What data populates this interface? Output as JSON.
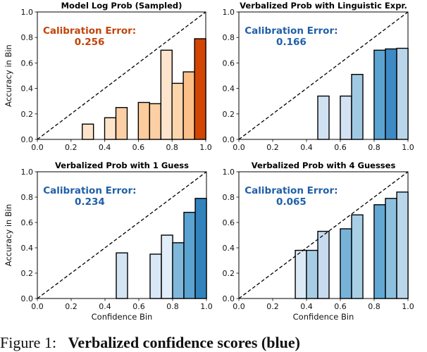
{
  "chart_data": [
    {
      "type": "bar",
      "title": "Model Log Prob (Sampled)",
      "annotation": {
        "label": "Calibration Error:",
        "value": "0.256",
        "color": "#c2440a"
      },
      "xlabel": "",
      "ylabel": "Accuracy in Bin",
      "xlim": [
        0,
        1
      ],
      "ylim": [
        0,
        1
      ],
      "xticks": [
        "0.0",
        "0.2",
        "0.4",
        "0.6",
        "0.8",
        "1.0"
      ],
      "yticks": [
        "0.0",
        "0.2",
        "0.4",
        "0.6",
        "0.8",
        "1.0"
      ],
      "bin_width": 0.0667,
      "bars": [
        {
          "x": 0.3,
          "y": 0.12,
          "color": "#fde3c9"
        },
        {
          "x": 0.433,
          "y": 0.17,
          "color": "#fde3c9"
        },
        {
          "x": 0.5,
          "y": 0.25,
          "color": "#fcd0a4"
        },
        {
          "x": 0.633,
          "y": 0.29,
          "color": "#fccc9c"
        },
        {
          "x": 0.7,
          "y": 0.28,
          "color": "#fcd0a4"
        },
        {
          "x": 0.767,
          "y": 0.7,
          "color": "#fee4cc"
        },
        {
          "x": 0.833,
          "y": 0.44,
          "color": "#fdd5ad"
        },
        {
          "x": 0.9,
          "y": 0.53,
          "color": "#fcbf87"
        },
        {
          "x": 0.967,
          "y": 0.79,
          "color": "#d24502"
        }
      ]
    },
    {
      "type": "bar",
      "title": "Verbalized Prob with Linguistic Expr.",
      "annotation": {
        "label": "Calibration Error:",
        "value": "0.166",
        "color": "#1f5fa8"
      },
      "xlabel": "",
      "ylabel": "",
      "xlim": [
        0,
        1
      ],
      "ylim": [
        0,
        1
      ],
      "xticks": [
        "0.0",
        "0.2",
        "0.4",
        "0.6",
        "0.8",
        "1.0"
      ],
      "yticks": [
        "0.0",
        "0.2",
        "0.4",
        "0.6",
        "0.8",
        "1.0"
      ],
      "bin_width": 0.0667,
      "bars": [
        {
          "x": 0.5,
          "y": 0.34,
          "color": "#d0e1f2"
        },
        {
          "x": 0.633,
          "y": 0.34,
          "color": "#d3e3f3"
        },
        {
          "x": 0.7,
          "y": 0.51,
          "color": "#a0c9e3"
        },
        {
          "x": 0.833,
          "y": 0.7,
          "color": "#5ba3d0"
        },
        {
          "x": 0.9,
          "y": 0.71,
          "color": "#3d8ac4"
        },
        {
          "x": 0.967,
          "y": 0.715,
          "color": "#b8d5ea"
        }
      ]
    },
    {
      "type": "bar",
      "title": "Verbalized Prob with 1 Guess",
      "annotation": {
        "label": "Calibration Error:",
        "value": "0.234",
        "color": "#1f5fa8"
      },
      "xlabel": "Confidence Bin",
      "ylabel": "Accuracy in Bin",
      "xlim": [
        0,
        1
      ],
      "ylim": [
        0,
        1
      ],
      "xticks": [
        "0.0",
        "0.2",
        "0.4",
        "0.6",
        "0.8",
        "1.0"
      ],
      "yticks": [
        "0.0",
        "0.2",
        "0.4",
        "0.6",
        "0.8",
        "1.0"
      ],
      "bin_width": 0.0667,
      "bars": [
        {
          "x": 0.5,
          "y": 0.36,
          "color": "#d3e4f3"
        },
        {
          "x": 0.7,
          "y": 0.35,
          "color": "#d8e7f5"
        },
        {
          "x": 0.767,
          "y": 0.5,
          "color": "#e1edf8"
        },
        {
          "x": 0.833,
          "y": 0.44,
          "color": "#7fb8da"
        },
        {
          "x": 0.9,
          "y": 0.68,
          "color": "#5ba3d0"
        },
        {
          "x": 0.967,
          "y": 0.79,
          "color": "#3282bd"
        }
      ]
    },
    {
      "type": "bar",
      "title": "Verbalized Prob with 4 Guesses",
      "annotation": {
        "label": "Calibration Error:",
        "value": "0.065",
        "color": "#1f5fa8"
      },
      "xlabel": "Confidence Bin",
      "ylabel": "",
      "xlim": [
        0,
        1
      ],
      "ylim": [
        0,
        1
      ],
      "xticks": [
        "0.0",
        "0.2",
        "0.4",
        "0.6",
        "0.8",
        "1.0"
      ],
      "yticks": [
        "0.0",
        "0.2",
        "0.4",
        "0.6",
        "0.8",
        "1.0"
      ],
      "bin_width": 0.0667,
      "bars": [
        {
          "x": 0.367,
          "y": 0.38,
          "color": "#dceaf6"
        },
        {
          "x": 0.433,
          "y": 0.38,
          "color": "#a6cde4"
        },
        {
          "x": 0.5,
          "y": 0.53,
          "color": "#c6dbef"
        },
        {
          "x": 0.633,
          "y": 0.55,
          "color": "#77b3d9"
        },
        {
          "x": 0.7,
          "y": 0.66,
          "color": "#a8cfe5"
        },
        {
          "x": 0.833,
          "y": 0.74,
          "color": "#62a8d3"
        },
        {
          "x": 0.9,
          "y": 0.79,
          "color": "#8cc0de"
        },
        {
          "x": 0.967,
          "y": 0.84,
          "color": "#b9d6eb"
        }
      ]
    }
  ],
  "caption": {
    "label": "Figure 1:",
    "text": "Verbalized confidence scores (blue)"
  }
}
